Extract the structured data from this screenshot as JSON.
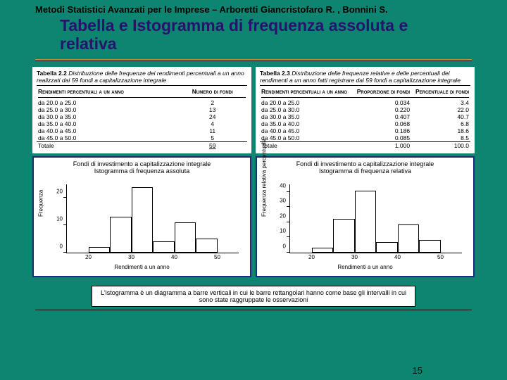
{
  "header": "Metodi Statistici Avanzati per le Imprese – Arboretti Giancristofaro R. , Bonnini S.",
  "title": "Tabella e Istogramma di frequenza assoluta e relativa",
  "page_number": "15",
  "colors": {
    "bg": "#0d8570",
    "title": "#27126d",
    "rule": "#c98b2b",
    "chart_border": "#1a2f7a"
  },
  "table_left": {
    "label": "Tabella 2.2",
    "subtitle": "Distribuzione delle frequenze dei rendimenti percentuali a un anno realizzati dai 59 fondi a capitalizzazione integrale",
    "col1": "Rendimenti percentuali a un anno",
    "col2": "Numero di fondi",
    "rows": [
      [
        "da 20.0 a 25.0",
        "2"
      ],
      [
        "da 25.0 a 30.0",
        "13"
      ],
      [
        "da 30.0 a 35.0",
        "24"
      ],
      [
        "da 35.0 a 40.0",
        "4"
      ],
      [
        "da 40.0 a 45.0",
        "11"
      ],
      [
        "da 45.0 a 50.0",
        "5"
      ]
    ],
    "total_label": "Totale",
    "total_val": "59"
  },
  "table_right": {
    "label": "Tabella 2.3",
    "subtitle": "Distribuzione delle frequenze relative e delle percentuali dei rendimenti a un anno fatti registrare dai 59 fondi a capitalizzazione integrale",
    "col1": "Rendimenti percentuali a un anno",
    "col2": "Proporzione di fondi",
    "col3": "Percentuale di fondi",
    "rows": [
      [
        "da 20.0 a 25.0",
        "0.034",
        "3.4"
      ],
      [
        "da 25.0 a 30.0",
        "0.220",
        "22.0"
      ],
      [
        "da 30.0 a 35.0",
        "0.407",
        "40.7"
      ],
      [
        "da 35.0 a 40.0",
        "0.068",
        "6.8"
      ],
      [
        "da 40.0 a 45.0",
        "0.186",
        "18.6"
      ],
      [
        "da 45.0 a 50.0",
        "0.085",
        "8.5"
      ]
    ],
    "total_label": "Totale",
    "total_val2": "1.000",
    "total_val3": "100.0"
  },
  "chart_left": {
    "title1": "Fondi di investimento a capitalizzazione integrale",
    "title2": "Istogramma di frequenza assoluta",
    "ylabel": "Frequenza",
    "xlabel": "Rendimenti a un anno",
    "xmin": 15,
    "xmax": 55,
    "xticks": [
      20,
      30,
      40,
      50
    ],
    "ymin": 0,
    "ymax": 25,
    "yticks": [
      0,
      10,
      20
    ],
    "bars": [
      {
        "x0": 20,
        "x1": 25,
        "y": 2
      },
      {
        "x0": 25,
        "x1": 30,
        "y": 13
      },
      {
        "x0": 30,
        "x1": 35,
        "y": 24
      },
      {
        "x0": 35,
        "x1": 40,
        "y": 4
      },
      {
        "x0": 40,
        "x1": 45,
        "y": 11
      },
      {
        "x0": 45,
        "x1": 50,
        "y": 5
      }
    ]
  },
  "chart_right": {
    "title1": "Fondi di investimento a capitalizzazione integrale",
    "title2": "Istogramma di frequenza relativa",
    "ylabel": "Frequenza relativa percentuale",
    "xlabel": "Rendimenti a un anno",
    "xmin": 15,
    "xmax": 55,
    "xticks": [
      20,
      30,
      40,
      50
    ],
    "ymin": 0,
    "ymax": 45,
    "yticks": [
      0,
      10,
      20,
      30,
      40
    ],
    "bars": [
      {
        "x0": 20,
        "x1": 25,
        "y": 3.4
      },
      {
        "x0": 25,
        "x1": 30,
        "y": 22.0
      },
      {
        "x0": 30,
        "x1": 35,
        "y": 40.7
      },
      {
        "x0": 35,
        "x1": 40,
        "y": 6.8
      },
      {
        "x0": 40,
        "x1": 45,
        "y": 18.6
      },
      {
        "x0": 45,
        "x1": 50,
        "y": 8.5
      }
    ]
  },
  "note": "L'istogramma è un diagramma a barre verticali in cui le barre rettangolari hanno come base gli intervalli in cui sono state raggruppate le osservazioni"
}
